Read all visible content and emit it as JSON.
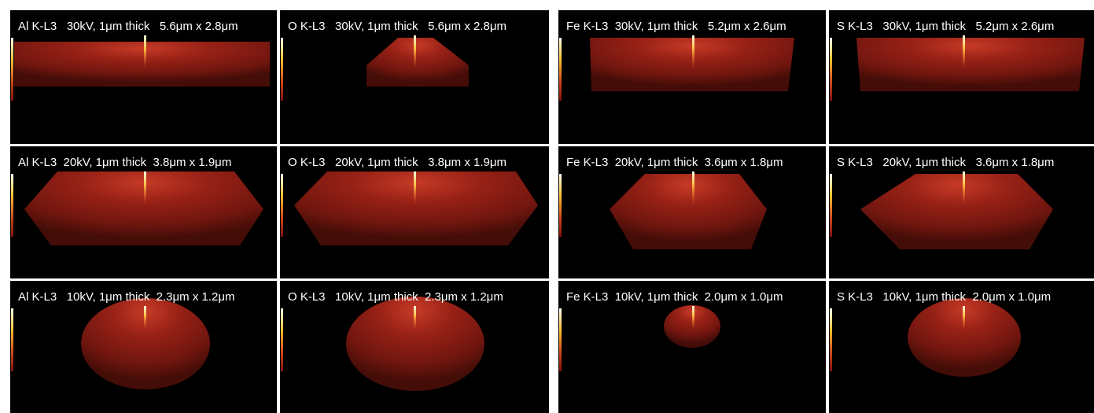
{
  "panels": [
    {
      "label": "Al K-L3   30kV, 1μm thick   5.6μm x 2.8μm"
    },
    {
      "label": "O K-L3   30kV, 1μm thick   5.6μm x 2.8μm"
    },
    {
      "label": "Fe K-L3  30kV, 1μm thick   5.2μm x 2.6μm"
    },
    {
      "label": "S K-L3   30kV, 1μm thick   5.2μm x 2.6μm"
    },
    {
      "label": "Al K-L3  20kV, 1μm thick  3.8μm x 1.9μm"
    },
    {
      "label": "O K-L3   20kV, 1μm thick   3.8μm x 1.9μm"
    },
    {
      "label": "Fe K-L3  20kV, 1μm thick  3.6μm x 1.8μm"
    },
    {
      "label": "S K-L3   20kV, 1μm thick   3.6μm x 1.8μm"
    },
    {
      "label": "Al K-L3   10kV, 1μm thick  2.3μm x 1.2μm"
    },
    {
      "label": "O K-L3   10kV, 1μm thick  2.3μm x 1.2μm"
    },
    {
      "label": "Fe K-L3  10kV, 1μm thick  2.0μm x 1.0μm"
    },
    {
      "label": "S K-L3   10kV, 1μm thick  2.0μm x 1.0μm"
    }
  ]
}
